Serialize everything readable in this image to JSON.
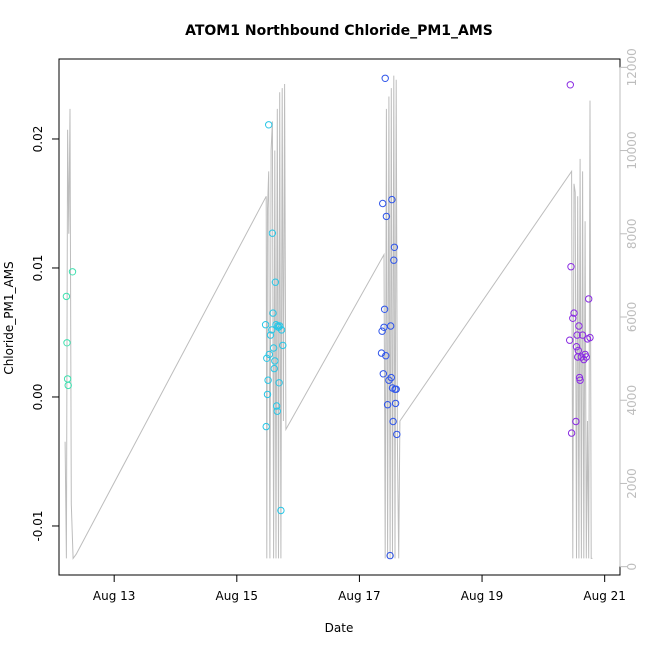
{
  "chart_data": {
    "type": "scatter",
    "title": "ATOM1 Northbound Chloride_PM1_AMS",
    "xlabel": "Date",
    "ylabel": "Chloride_PM1_AMS",
    "y2label": "",
    "xlim": [
      12.1,
      21.25
    ],
    "ylim": [
      -0.0138,
      0.0262
    ],
    "y2lim": [
      -200,
      12200
    ],
    "x_ticks": [
      {
        "value": 13,
        "label": "Aug 13"
      },
      {
        "value": 15,
        "label": "Aug 15"
      },
      {
        "value": 17,
        "label": "Aug 17"
      },
      {
        "value": 19,
        "label": "Aug 19"
      },
      {
        "value": 21,
        "label": "Aug 21"
      }
    ],
    "y_ticks": [
      {
        "value": -0.01,
        "label": "-0.01"
      },
      {
        "value": 0.0,
        "label": "0.00"
      },
      {
        "value": 0.01,
        "label": "0.01"
      },
      {
        "value": 0.02,
        "label": "0.02"
      }
    ],
    "y2_ticks": [
      {
        "value": 0,
        "label": "0"
      },
      {
        "value": 2000,
        "label": "2000"
      },
      {
        "value": 4000,
        "label": "4000"
      },
      {
        "value": 6000,
        "label": "6000"
      },
      {
        "value": 8000,
        "label": "8000"
      },
      {
        "value": 10000,
        "label": "10000"
      },
      {
        "value": 12000,
        "label": "12000"
      }
    ],
    "grid": false,
    "legend": "none",
    "colors": {
      "line": "#bdbdbd",
      "frame": "#000000",
      "right_axis": "#bdbdbd"
    },
    "series": [
      {
        "color": "#40e0b0",
        "x": [
          12.22,
          12.23,
          12.24,
          12.25,
          12.32
        ],
        "y": [
          0.0078,
          0.0042,
          0.0014,
          0.0009,
          0.0097
        ]
      },
      {
        "color": "#29c6e6",
        "x": [
          15.47,
          15.48,
          15.49,
          15.5,
          15.51,
          15.52,
          15.53,
          15.55,
          15.57,
          15.58,
          15.59,
          15.6,
          15.61,
          15.62,
          15.63,
          15.64,
          15.65,
          15.66,
          15.67,
          15.68,
          15.69,
          15.7,
          15.72,
          15.73,
          15.75
        ],
        "y": [
          0.0056,
          -0.0023,
          0.003,
          0.0002,
          0.0013,
          0.0211,
          0.0033,
          0.0048,
          0.0052,
          0.0127,
          0.0065,
          0.0038,
          0.0022,
          0.0028,
          0.0089,
          0.0056,
          -0.0007,
          -0.0011,
          0.0055,
          0.0054,
          0.0011,
          0.0055,
          -0.0088,
          0.0052,
          0.004
        ]
      },
      {
        "color": "#2f55ea",
        "x": [
          17.36,
          17.37,
          17.38,
          17.39,
          17.4,
          17.41,
          17.42,
          17.43,
          17.44,
          17.46,
          17.48,
          17.5,
          17.51,
          17.52,
          17.53,
          17.54,
          17.55,
          17.56,
          17.57,
          17.58,
          17.59,
          17.6,
          17.61
        ],
        "y": [
          0.0034,
          0.0051,
          0.015,
          0.0018,
          0.0054,
          0.0068,
          0.0247,
          0.0032,
          0.014,
          -0.0006,
          0.0013,
          -0.0123,
          0.0055,
          0.0015,
          0.0153,
          0.0007,
          -0.0019,
          0.0106,
          0.0116,
          0.0006,
          -0.0005,
          0.0006,
          -0.0029
        ]
      },
      {
        "color": "#8a2be2",
        "x": [
          20.43,
          20.44,
          20.45,
          20.46,
          20.48,
          20.5,
          20.53,
          20.54,
          20.55,
          20.56,
          20.57,
          20.58,
          20.59,
          20.6,
          20.62,
          20.64,
          20.66,
          20.68,
          20.7,
          20.72,
          20.74,
          20.76
        ],
        "y": [
          0.0044,
          0.0242,
          0.0101,
          -0.0028,
          0.0061,
          0.0065,
          -0.0019,
          0.0039,
          0.0048,
          0.0031,
          0.0036,
          0.0055,
          0.0015,
          0.0013,
          0.0031,
          0.0048,
          0.0029,
          0.0033,
          0.0031,
          0.0045,
          0.0076,
          0.0046
        ]
      }
    ],
    "altitude_line": {
      "color": "#bdbdbd",
      "x": [
        12.2,
        12.22,
        12.24,
        12.26,
        12.28,
        12.3,
        12.33,
        12.38,
        15.48,
        15.49,
        15.5,
        15.52,
        15.54,
        15.56,
        15.58,
        15.6,
        15.62,
        15.64,
        15.66,
        15.68,
        15.7,
        15.72,
        15.74,
        15.76,
        15.78,
        15.8,
        17.4,
        17.42,
        17.44,
        17.46,
        17.48,
        17.5,
        17.52,
        17.54,
        17.56,
        17.58,
        17.6,
        17.62,
        17.64,
        17.66,
        20.46,
        20.48,
        20.5,
        20.52,
        20.54,
        20.56,
        20.58,
        20.6,
        20.62,
        20.64,
        20.66,
        20.68,
        20.7,
        20.72,
        20.74,
        20.76,
        20.78,
        20.8
      ],
      "y": [
        3000,
        200,
        10500,
        8000,
        11000,
        1500,
        200,
        300,
        8900,
        200,
        8600,
        9500,
        200,
        10000,
        10700,
        200,
        10000,
        200,
        11000,
        200,
        11400,
        200,
        11500,
        3500,
        11600,
        3300,
        7500,
        200,
        11000,
        200,
        11300,
        200,
        11500,
        200,
        11800,
        200,
        11700,
        3000,
        200,
        3500,
        9500,
        200,
        9200,
        9000,
        200,
        8900,
        200,
        9800,
        200,
        9500,
        200,
        8300,
        200,
        3500,
        200,
        11200,
        200,
        200
      ]
    }
  }
}
